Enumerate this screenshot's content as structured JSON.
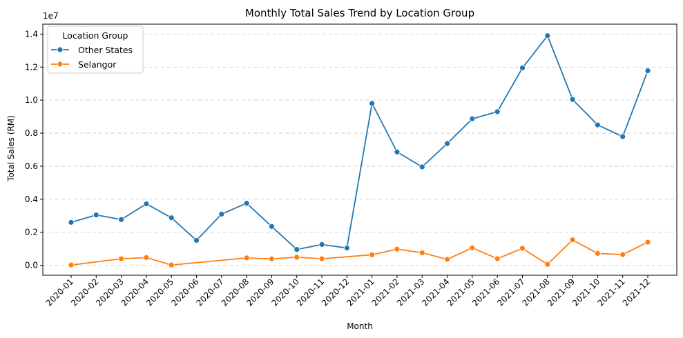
{
  "chart_data": {
    "type": "line",
    "title": "Monthly Total Sales Trend by Location Group",
    "xlabel": "Month",
    "ylabel": "Total Sales (RM)",
    "y_offset_label": "1e7",
    "y_scale": 10000000,
    "ylim": [
      -600000,
      14600000
    ],
    "yticks": [
      0,
      2000000,
      4000000,
      6000000,
      8000000,
      10000000,
      12000000,
      14000000
    ],
    "ytick_labels": [
      "0.0",
      "0.2",
      "0.4",
      "0.6",
      "0.8",
      "1.0",
      "1.2",
      "1.4"
    ],
    "grid": "y-dashed",
    "legend": {
      "title": "Location Group",
      "placement": "top-left"
    },
    "categories": [
      "2020-01",
      "2020-02",
      "2020-03",
      "2020-04",
      "2020-05",
      "2020-06",
      "2020-07",
      "2020-08",
      "2020-09",
      "2020-10",
      "2020-11",
      "2020-12",
      "2021-01",
      "2021-02",
      "2021-03",
      "2021-04",
      "2021-05",
      "2021-06",
      "2021-07",
      "2021-08",
      "2021-09",
      "2021-10",
      "2021-11",
      "2021-12"
    ],
    "series": [
      {
        "name": "Other States",
        "color": "#1f77b4",
        "values": [
          2600000,
          3050000,
          2770000,
          3720000,
          2880000,
          1510000,
          3100000,
          3760000,
          2350000,
          960000,
          1260000,
          1050000,
          9800000,
          6860000,
          5960000,
          7370000,
          8870000,
          9300000,
          11950000,
          13900000,
          10040000,
          8500000,
          7790000,
          11780000
        ]
      },
      {
        "name": "Selangor",
        "color": "#ff7f0e",
        "values": [
          20000,
          null,
          400000,
          470000,
          20000,
          null,
          null,
          450000,
          390000,
          490000,
          400000,
          null,
          640000,
          980000,
          760000,
          360000,
          1060000,
          400000,
          1030000,
          60000,
          1540000,
          720000,
          650000,
          1400000
        ]
      }
    ]
  }
}
